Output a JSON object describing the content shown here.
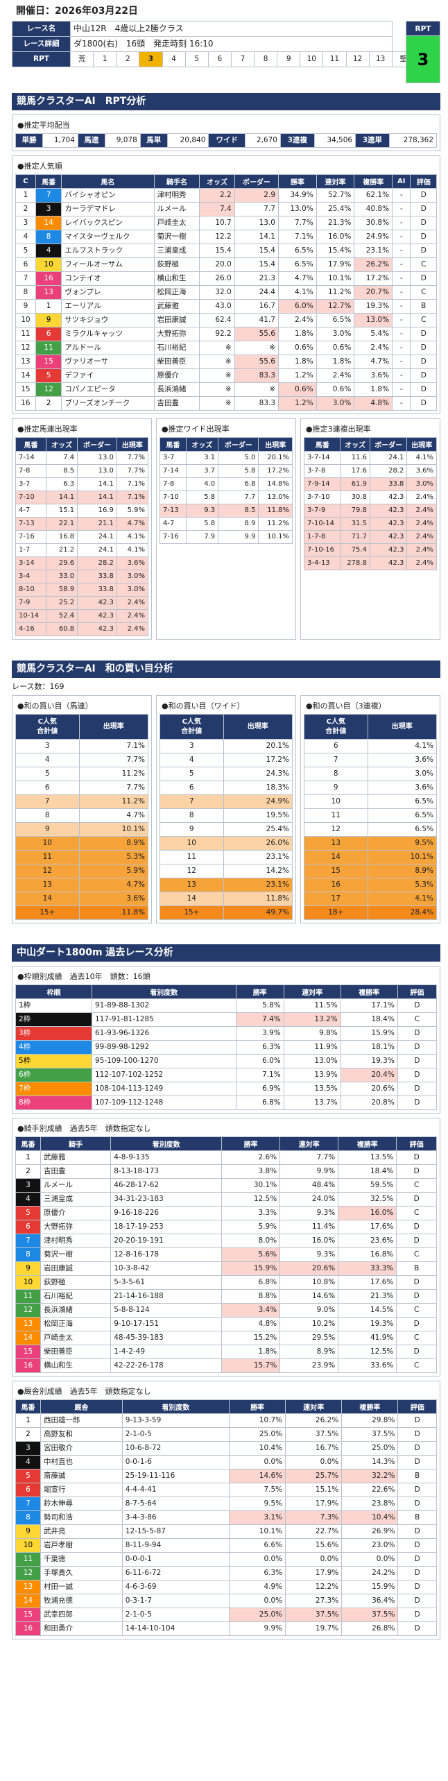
{
  "header": {
    "date": "開催日：2026年03月22日"
  },
  "race": {
    "name_label": "レース名",
    "name": "中山12R　4歳以上2勝クラス",
    "detail_label": "レース詳細",
    "detail": "ダ1800(右)　16頭　発走時刻 16:10",
    "rpt_label": "RPT",
    "rpt_value": "3",
    "cells": [
      "荒",
      "1",
      "2",
      "3",
      "4",
      "5",
      "6",
      "7",
      "8",
      "9",
      "10",
      "11",
      "12",
      "13",
      "堅"
    ],
    "selected": "3"
  },
  "section1": {
    "title": "競馬クラスターAI　RPT分析"
  },
  "odds": {
    "title": "●推定平均配当",
    "items": [
      [
        "単勝",
        "1,704"
      ],
      [
        "馬連",
        "9,078"
      ],
      [
        "馬単",
        "20,840"
      ],
      [
        "ワイド",
        "2,670"
      ],
      [
        "3連複",
        "34,506"
      ],
      [
        "3連単",
        "278,362"
      ]
    ]
  },
  "popularity": {
    "title": "●推定人気順",
    "headers": [
      "C",
      "馬番",
      "馬名",
      "騎手名",
      "オッズ",
      "ボーダー",
      "勝率",
      "連対率",
      "複勝率",
      "AI",
      "評価"
    ],
    "rows": [
      [
        "1",
        "7",
        "バイシャオピン",
        "津村明秀",
        "2.2",
        "2.9",
        "34.9%",
        "52.7%",
        "62.1%",
        "-",
        "D"
      ],
      [
        "2",
        "3",
        "カーラデマドレ",
        "ルメール",
        "7.4",
        "7.7",
        "13.0%",
        "25.4%",
        "40.8%",
        "-",
        "D"
      ],
      [
        "3",
        "14",
        "レイバックスピン",
        "戸崎圭太",
        "10.7",
        "13.0",
        "7.7%",
        "21.3%",
        "30.8%",
        "-",
        "D"
      ],
      [
        "4",
        "8",
        "マイスターヴェルク",
        "菊沢一樹",
        "12.2",
        "14.1",
        "7.1%",
        "16.0%",
        "24.9%",
        "-",
        "D"
      ],
      [
        "5",
        "4",
        "エルフストラック",
        "三浦皇成",
        "15.4",
        "15.4",
        "6.5%",
        "15.4%",
        "23.1%",
        "-",
        "D"
      ],
      [
        "6",
        "10",
        "フィールオーサム",
        "荻野極",
        "20.0",
        "15.4",
        "6.5%",
        "17.9%",
        "26.2%",
        "-",
        "C"
      ],
      [
        "7",
        "16",
        "コンテイオ",
        "横山和生",
        "26.0",
        "21.3",
        "4.7%",
        "10.1%",
        "17.2%",
        "-",
        "D"
      ],
      [
        "8",
        "13",
        "ヴォンプレ",
        "松岡正海",
        "32.0",
        "24.4",
        "4.1%",
        "11.2%",
        "20.7%",
        "-",
        "C"
      ],
      [
        "9",
        "1",
        "エーリアル",
        "武藤雅",
        "43.0",
        "16.7",
        "6.0%",
        "12.7%",
        "19.3%",
        "-",
        "B"
      ],
      [
        "10",
        "9",
        "サツキジョウ",
        "岩田康誠",
        "62.4",
        "41.7",
        "2.4%",
        "6.5%",
        "13.0%",
        "-",
        "C"
      ],
      [
        "11",
        "6",
        "ミラクルキャッツ",
        "大野拓弥",
        "92.2",
        "55.6",
        "1.8%",
        "3.0%",
        "5.4%",
        "-",
        "D"
      ],
      [
        "12",
        "11",
        "アルドール",
        "石川裕紀",
        "※",
        "※",
        "0.6%",
        "0.6%",
        "2.4%",
        "-",
        "D"
      ],
      [
        "13",
        "15",
        "ヴァリオーサ",
        "柴田善臣",
        "※",
        "55.6",
        "1.8%",
        "1.8%",
        "4.7%",
        "-",
        "D"
      ],
      [
        "14",
        "5",
        "デファイ",
        "原優介",
        "※",
        "83.3",
        "1.2%",
        "2.4%",
        "3.6%",
        "-",
        "D"
      ],
      [
        "15",
        "12",
        "コパノエピータ",
        "長浜鴻緒",
        "※",
        "※",
        "0.6%",
        "0.6%",
        "1.8%",
        "-",
        "D"
      ],
      [
        "16",
        "2",
        "ブリーズオンチーク",
        "吉田豊",
        "※",
        "83.3",
        "1.2%",
        "3.0%",
        "4.8%",
        "-",
        "D"
      ]
    ]
  },
  "combos": {
    "umaren": {
      "title": "●推定馬連出現率",
      "headers": [
        "馬番",
        "オッズ",
        "ボーダー",
        "出現率"
      ],
      "rows": [
        [
          "7-14",
          "7.4",
          "13.0",
          "7.7%"
        ],
        [
          "7-8",
          "8.5",
          "13.0",
          "7.7%"
        ],
        [
          "3-7",
          "6.3",
          "14.1",
          "7.1%"
        ],
        [
          "7-10",
          "14.1",
          "14.1",
          "7.1%"
        ],
        [
          "4-7",
          "15.1",
          "16.9",
          "5.9%"
        ],
        [
          "7-13",
          "22.1",
          "21.1",
          "4.7%"
        ],
        [
          "7-16",
          "16.8",
          "24.1",
          "4.1%"
        ],
        [
          "1-7",
          "21.2",
          "24.1",
          "4.1%"
        ],
        [
          "3-14",
          "29.6",
          "28.2",
          "3.6%"
        ],
        [
          "3-4",
          "33.0",
          "33.8",
          "3.0%"
        ],
        [
          "8-10",
          "58.9",
          "33.8",
          "3.0%"
        ],
        [
          "7-9",
          "25.2",
          "42.3",
          "2.4%"
        ],
        [
          "10-14",
          "52.4",
          "42.3",
          "2.4%"
        ],
        [
          "4-16",
          "60.8",
          "42.3",
          "2.4%"
        ]
      ]
    },
    "wide": {
      "title": "●推定ワイド出現率",
      "headers": [
        "馬番",
        "オッズ",
        "ボーダー",
        "出現率"
      ],
      "rows": [
        [
          "3-7",
          "3.1",
          "5.0",
          "20.1%"
        ],
        [
          "7-14",
          "3.7",
          "5.8",
          "17.2%"
        ],
        [
          "7-8",
          "4.0",
          "6.8",
          "14.8%"
        ],
        [
          "7-10",
          "5.8",
          "7.7",
          "13.0%"
        ],
        [
          "7-13",
          "9.3",
          "8.5",
          "11.8%"
        ],
        [
          "4-7",
          "5.8",
          "8.9",
          "11.2%"
        ],
        [
          "7-16",
          "7.9",
          "9.9",
          "10.1%"
        ]
      ]
    },
    "sanrenpuku": {
      "title": "●推定3連複出現率",
      "headers": [
        "馬番",
        "オッズ",
        "ボーダー",
        "出現率"
      ],
      "rows": [
        [
          "3-7-14",
          "11.6",
          "24.1",
          "4.1%"
        ],
        [
          "3-7-8",
          "17.6",
          "28.2",
          "3.6%"
        ],
        [
          "7-9-14",
          "61.9",
          "33.8",
          "3.0%"
        ],
        [
          "3-7-10",
          "30.8",
          "42.3",
          "2.4%"
        ],
        [
          "3-7-9",
          "79.8",
          "42.3",
          "2.4%"
        ],
        [
          "7-10-14",
          "31.5",
          "42.3",
          "2.4%"
        ],
        [
          "1-7-8",
          "71.7",
          "42.3",
          "2.4%"
        ],
        [
          "7-10-16",
          "75.4",
          "42.3",
          "2.4%"
        ],
        [
          "3-4-13",
          "278.8",
          "42.3",
          "2.4%"
        ]
      ]
    }
  },
  "section2": {
    "title": "競馬クラスターAI　和の買い目分析",
    "race_level": "レース数：169"
  },
  "sums": {
    "umaren": {
      "title": "●和の買い目（馬連）",
      "h1": "C人気\n合計値",
      "h2": "出現率",
      "rows": [
        [
          "3",
          "7.1%"
        ],
        [
          "4",
          "7.7%"
        ],
        [
          "5",
          "11.2%"
        ],
        [
          "6",
          "7.7%"
        ],
        [
          "7",
          "11.2%"
        ],
        [
          "8",
          "4.7%"
        ],
        [
          "9",
          "10.1%"
        ],
        [
          "10",
          "8.9%"
        ],
        [
          "11",
          "5.3%"
        ],
        [
          "12",
          "5.9%"
        ],
        [
          "13",
          "4.7%"
        ],
        [
          "14",
          "3.6%"
        ],
        [
          "15+",
          "11.8%"
        ]
      ]
    },
    "wide": {
      "title": "●和の買い目（ワイド）",
      "h1": "C人気\n合計値",
      "h2": "出現率",
      "rows": [
        [
          "3",
          "20.1%"
        ],
        [
          "4",
          "17.2%"
        ],
        [
          "5",
          "24.3%"
        ],
        [
          "6",
          "18.3%"
        ],
        [
          "7",
          "24.9%"
        ],
        [
          "8",
          "19.5%"
        ],
        [
          "9",
          "25.4%"
        ],
        [
          "10",
          "26.0%"
        ],
        [
          "11",
          "23.1%"
        ],
        [
          "12",
          "14.2%"
        ],
        [
          "13",
          "23.1%"
        ],
        [
          "14",
          "11.8%"
        ],
        [
          "15+",
          "49.7%"
        ]
      ]
    },
    "sanrenpuku": {
      "title": "●和の買い目（3連複）",
      "h1": "C人気\n合計値",
      "h2": "出現率",
      "rows": [
        [
          "6",
          "4.1%"
        ],
        [
          "7",
          "3.6%"
        ],
        [
          "8",
          "3.0%"
        ],
        [
          "9",
          "3.6%"
        ],
        [
          "10",
          "6.5%"
        ],
        [
          "11",
          "6.5%"
        ],
        [
          "12",
          "6.5%"
        ],
        [
          "13",
          "9.5%"
        ],
        [
          "14",
          "10.1%"
        ],
        [
          "15",
          "8.9%"
        ],
        [
          "16",
          "5.3%"
        ],
        [
          "17",
          "4.1%"
        ],
        [
          "18+",
          "28.4%"
        ]
      ]
    }
  },
  "section3": {
    "title": "中山ダート1800m 過去レース分析"
  },
  "waku": {
    "title": "●枠順別成績　過去10年　頭数：16頭",
    "headers": [
      "枠順",
      "着別度数",
      "勝率",
      "連対率",
      "複勝率",
      "評価"
    ],
    "rows": [
      [
        "1枠",
        "91-89-88-1302",
        "5.8%",
        "11.5%",
        "17.1%",
        "D"
      ],
      [
        "2枠",
        "117-91-81-1285",
        "7.4%",
        "13.2%",
        "18.4%",
        "C"
      ],
      [
        "3枠",
        "61-93-96-1326",
        "3.9%",
        "9.8%",
        "15.9%",
        "D"
      ],
      [
        "4枠",
        "99-89-98-1292",
        "6.3%",
        "11.9%",
        "18.1%",
        "D"
      ],
      [
        "5枠",
        "95-109-100-1270",
        "6.0%",
        "13.0%",
        "19.3%",
        "D"
      ],
      [
        "6枠",
        "112-107-102-1252",
        "7.1%",
        "13.9%",
        "20.4%",
        "D"
      ],
      [
        "7枠",
        "108-104-113-1249",
        "6.9%",
        "13.5%",
        "20.6%",
        "D"
      ],
      [
        "8枠",
        "107-109-112-1248",
        "6.8%",
        "13.7%",
        "20.8%",
        "D"
      ]
    ]
  },
  "jockey": {
    "title": "●騎手別成績　過去5年　頭数指定なし",
    "headers": [
      "馬番",
      "騎手",
      "着別度数",
      "勝率",
      "連対率",
      "複勝率",
      "評価"
    ],
    "rows": [
      [
        "1",
        "武藤雅",
        "4-8-9-135",
        "2.6%",
        "7.7%",
        "13.5%",
        "D"
      ],
      [
        "2",
        "吉田豊",
        "8-13-18-173",
        "3.8%",
        "9.9%",
        "18.4%",
        "D"
      ],
      [
        "3",
        "ルメール",
        "46-28-17-62",
        "30.1%",
        "48.4%",
        "59.5%",
        "C"
      ],
      [
        "4",
        "三浦皇成",
        "34-31-23-183",
        "12.5%",
        "24.0%",
        "32.5%",
        "D"
      ],
      [
        "5",
        "原優介",
        "9-16-18-226",
        "3.3%",
        "9.3%",
        "16.0%",
        "C"
      ],
      [
        "6",
        "大野拓弥",
        "18-17-19-253",
        "5.9%",
        "11.4%",
        "17.6%",
        "D"
      ],
      [
        "7",
        "津村明秀",
        "20-20-19-191",
        "8.0%",
        "16.0%",
        "23.6%",
        "D"
      ],
      [
        "8",
        "菊沢一樹",
        "12-8-16-178",
        "5.6%",
        "9.3%",
        "16.8%",
        "C"
      ],
      [
        "9",
        "岩田康誠",
        "10-3-8-42",
        "15.9%",
        "20.6%",
        "33.3%",
        "B"
      ],
      [
        "10",
        "荻野極",
        "5-3-5-61",
        "6.8%",
        "10.8%",
        "17.6%",
        "D"
      ],
      [
        "11",
        "石川裕紀",
        "21-14-16-188",
        "8.8%",
        "14.6%",
        "21.3%",
        "D"
      ],
      [
        "12",
        "長浜鴻緒",
        "5-8-8-124",
        "3.4%",
        "9.0%",
        "14.5%",
        "C"
      ],
      [
        "13",
        "松岡正海",
        "9-10-17-151",
        "4.8%",
        "10.2%",
        "19.3%",
        "D"
      ],
      [
        "14",
        "戸崎圭太",
        "48-45-39-183",
        "15.2%",
        "29.5%",
        "41.9%",
        "C"
      ],
      [
        "15",
        "柴田善臣",
        "1-4-2-49",
        "1.8%",
        "8.9%",
        "12.5%",
        "D"
      ],
      [
        "16",
        "横山和生",
        "42-22-26-178",
        "15.7%",
        "23.9%",
        "33.6%",
        "C"
      ]
    ]
  },
  "trainer": {
    "title": "●厩舎別成績　過去5年　頭数指定なし",
    "headers": [
      "馬番",
      "厩舎",
      "着別度数",
      "勝率",
      "連対率",
      "複勝率",
      "評価"
    ],
    "rows": [
      [
        "1",
        "西田雄一郎",
        "9-13-3-59",
        "10.7%",
        "26.2%",
        "29.8%",
        "D"
      ],
      [
        "2",
        "高野友和",
        "2-1-0-5",
        "25.0%",
        "37.5%",
        "37.5%",
        "D"
      ],
      [
        "3",
        "宮田敬介",
        "10-6-8-72",
        "10.4%",
        "16.7%",
        "25.0%",
        "D"
      ],
      [
        "4",
        "中村直也",
        "0-0-1-6",
        "0.0%",
        "0.0%",
        "14.3%",
        "D"
      ],
      [
        "5",
        "斎藤誠",
        "25-19-11-116",
        "14.6%",
        "25.7%",
        "32.2%",
        "B"
      ],
      [
        "6",
        "堀宣行",
        "4-4-4-41",
        "7.5%",
        "15.1%",
        "22.6%",
        "D"
      ],
      [
        "7",
        "鈴木伸尋",
        "8-7-5-64",
        "9.5%",
        "17.9%",
        "23.8%",
        "D"
      ],
      [
        "8",
        "勢司和浩",
        "3-4-3-86",
        "3.1%",
        "7.3%",
        "10.4%",
        "B"
      ],
      [
        "9",
        "武井亮",
        "12-15-5-87",
        "10.1%",
        "22.7%",
        "26.9%",
        "D"
      ],
      [
        "10",
        "岩戸孝樹",
        "8-11-9-94",
        "6.6%",
        "15.6%",
        "23.0%",
        "D"
      ],
      [
        "11",
        "千葉徳",
        "0-0-0-1",
        "0.0%",
        "0.0%",
        "0.0%",
        "D"
      ],
      [
        "12",
        "手塚貴久",
        "6-11-6-72",
        "6.3%",
        "17.9%",
        "24.2%",
        "D"
      ],
      [
        "13",
        "村田一誠",
        "4-6-3-69",
        "4.9%",
        "12.2%",
        "15.9%",
        "D"
      ],
      [
        "14",
        "牧浦充徳",
        "0-3-1-7",
        "0.0%",
        "27.3%",
        "36.4%",
        "D"
      ],
      [
        "15",
        "武幸四郎",
        "2-1-0-5",
        "25.0%",
        "37.5%",
        "37.5%",
        "D"
      ],
      [
        "16",
        "和田勇介",
        "14-14-10-104",
        "9.9%",
        "19.7%",
        "26.8%",
        "D"
      ]
    ]
  }
}
